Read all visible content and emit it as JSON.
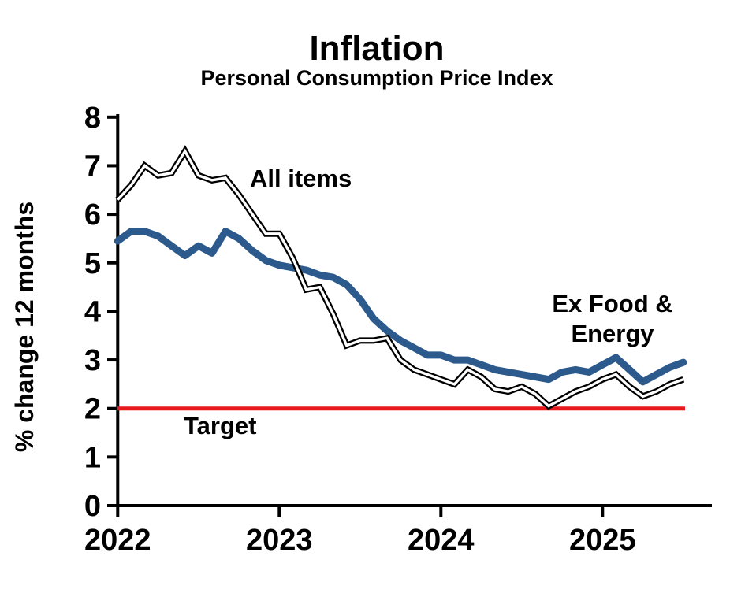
{
  "title": "Inflation",
  "subtitle": "Personal Consumption Price Index",
  "y_axis": {
    "label": "% change 12 months",
    "ticks": [
      0,
      1,
      2,
      3,
      4,
      5,
      6,
      7,
      8
    ],
    "range": [
      0,
      8
    ]
  },
  "x_axis": {
    "tick_labels": [
      "2022",
      "2023",
      "2024",
      "2025"
    ]
  },
  "annotations": {
    "all_items_label": "All items",
    "ex_food_energy_line1": "Ex Food &",
    "ex_food_energy_line2": "Energy",
    "target_label": "Target"
  },
  "colors": {
    "all_items_line": "#000000",
    "all_items_core": "#ffffff",
    "ex_food_energy_line": "#2d5a8c",
    "ex_food_energy_label": "#1f4080",
    "target": "#e8191d",
    "axis": "#000000",
    "background": "#ffffff"
  },
  "chart_data": {
    "type": "line",
    "title": "Inflation",
    "subtitle": "Personal Consumption Price Index",
    "xlabel": "",
    "ylabel": "% change 12 months",
    "ylim": [
      0,
      8
    ],
    "grid": false,
    "x_frequency": "monthly",
    "x_start": "2022-01",
    "x_end": "2025-07",
    "x_tick_labels": [
      "2022",
      "2023",
      "2024",
      "2025"
    ],
    "x_tick_months_index": [
      0,
      12,
      24,
      36
    ],
    "series": [
      {
        "name": "All items",
        "color": "#000000",
        "style": "double black line with white core",
        "values": [
          6.3,
          6.6,
          7.0,
          6.8,
          6.85,
          7.3,
          6.8,
          6.7,
          6.75,
          6.4,
          6.0,
          5.6,
          5.6,
          5.1,
          4.45,
          4.5,
          3.95,
          3.3,
          3.4,
          3.4,
          3.45,
          3.0,
          2.8,
          2.7,
          2.6,
          2.5,
          2.8,
          2.65,
          2.4,
          2.35,
          2.45,
          2.3,
          2.05,
          2.2,
          2.35,
          2.45,
          2.6,
          2.7,
          2.45,
          2.25,
          2.35,
          2.5,
          2.6
        ]
      },
      {
        "name": "Ex Food & Energy",
        "color": "#2d5a8c",
        "style": "thick solid line",
        "values": [
          5.45,
          5.65,
          5.65,
          5.55,
          5.35,
          5.15,
          5.35,
          5.2,
          5.65,
          5.5,
          5.25,
          5.05,
          4.95,
          4.9,
          4.85,
          4.75,
          4.7,
          4.55,
          4.25,
          3.85,
          3.6,
          3.4,
          3.25,
          3.1,
          3.1,
          3.0,
          3.0,
          2.9,
          2.8,
          2.75,
          2.7,
          2.65,
          2.6,
          2.75,
          2.8,
          2.75,
          2.9,
          3.05,
          2.8,
          2.55,
          2.7,
          2.85,
          2.95
        ]
      },
      {
        "name": "Target",
        "color": "#e8191d",
        "style": "horizontal reference line",
        "constant_value": 2.0
      }
    ],
    "legend_position": "inline-annotations"
  }
}
